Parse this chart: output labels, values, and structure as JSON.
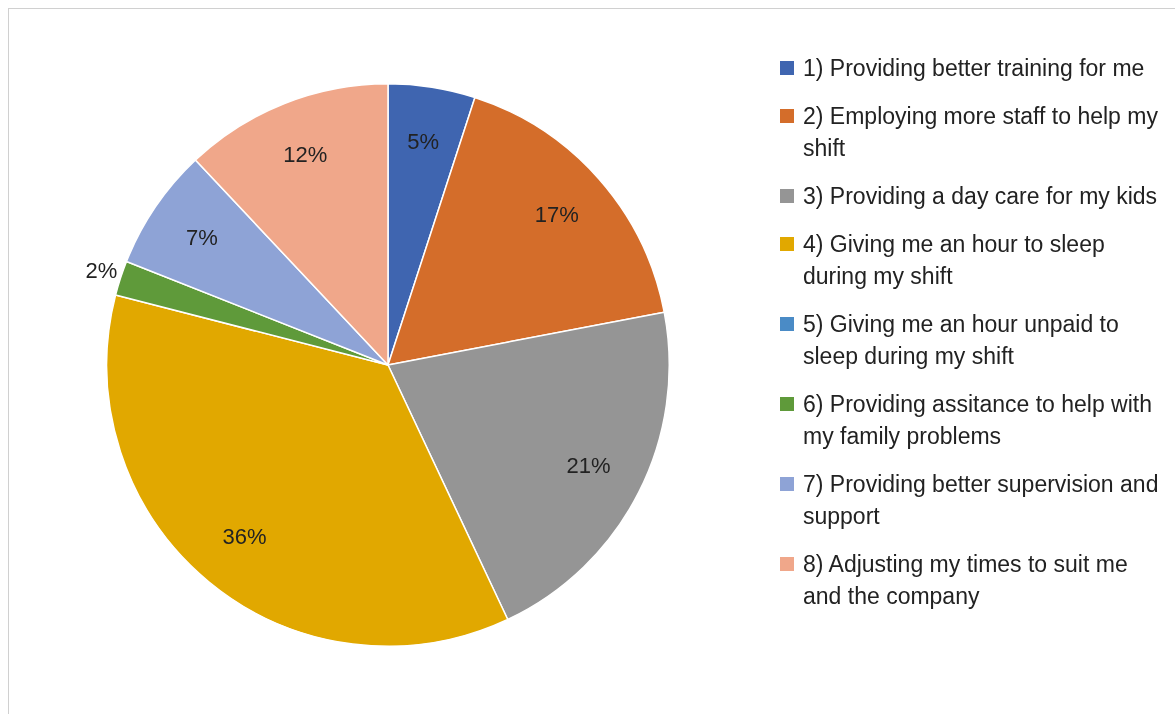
{
  "chart_data": {
    "type": "pie",
    "categories": [
      "1) Providing better training for me",
      "2) Employing more staff to help my shift",
      "3) Providing a day care for my kids",
      "4) Giving me an hour to sleep during my shift",
      "5) Giving me an hour unpaid to sleep during my shift",
      "6) Providing assitance to help with my family problems",
      "7) Providing better supervision and support",
      "8) Adjusting my times to suit me and the company"
    ],
    "values": [
      5,
      17,
      21,
      36,
      0,
      2,
      7,
      12
    ],
    "value_labels": [
      "5%",
      "17%",
      "21%",
      "36%",
      null,
      "2%",
      "7%",
      "12%"
    ],
    "colors": [
      "#3f65b0",
      "#d46d2a",
      "#959595",
      "#e1a800",
      "#4a8bc6",
      "#5f9a3a",
      "#8ea3d6",
      "#f0a78a"
    ],
    "legend": "right"
  }
}
